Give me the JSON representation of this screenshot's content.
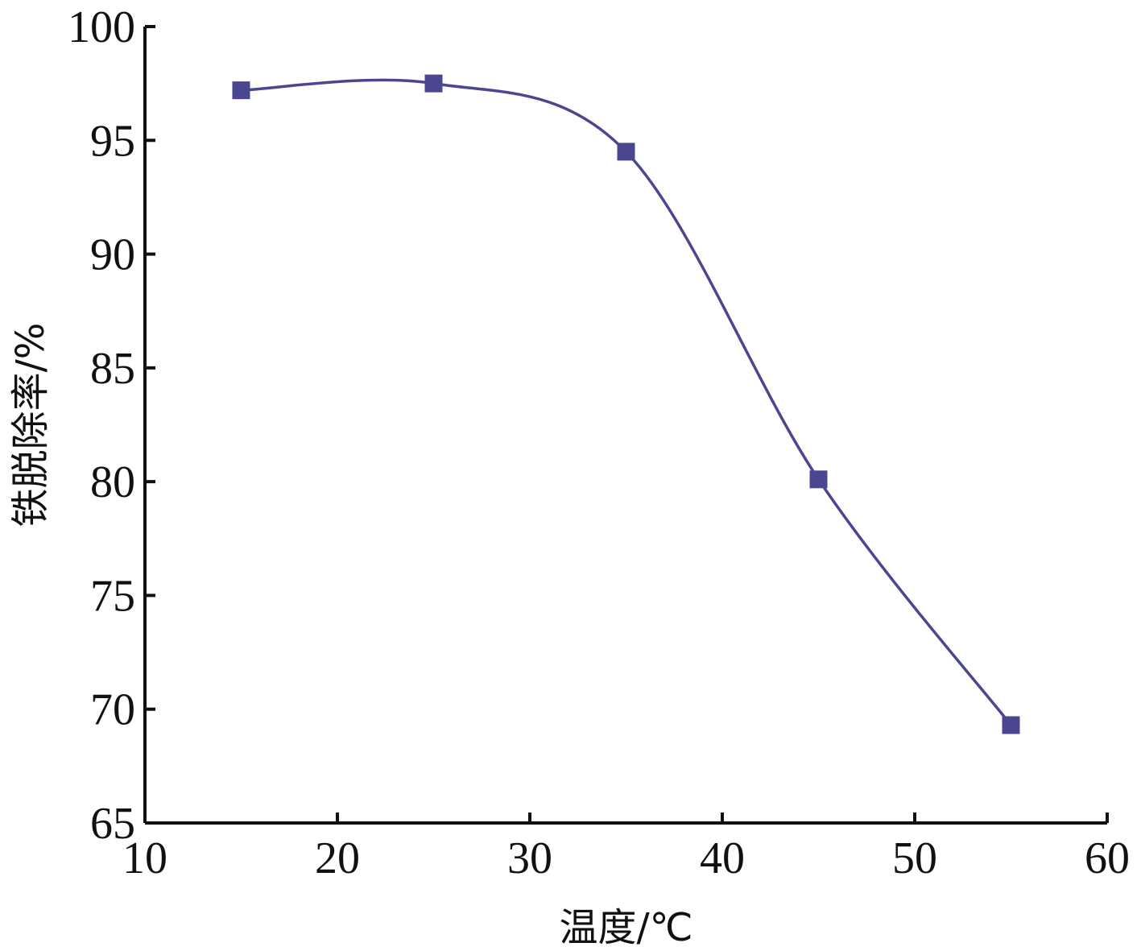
{
  "chart_data": {
    "type": "line",
    "xlabel": "温度/℃",
    "ylabel": "铁脱除率/%",
    "xlim": [
      10,
      60
    ],
    "ylim": [
      65,
      100
    ],
    "x_ticks": [
      10,
      20,
      30,
      40,
      50,
      60
    ],
    "y_ticks": [
      65,
      70,
      75,
      80,
      85,
      90,
      95,
      100
    ],
    "grid": false,
    "smooth": true,
    "colors": {
      "series": "#4a4690",
      "marker": "#4a4690",
      "axis": "#111111"
    },
    "series": [
      {
        "x": [
          15,
          25,
          35,
          45,
          55
        ],
        "values": [
          97.2,
          97.5,
          94.5,
          80.1,
          69.3
        ],
        "marker": "square"
      }
    ]
  }
}
